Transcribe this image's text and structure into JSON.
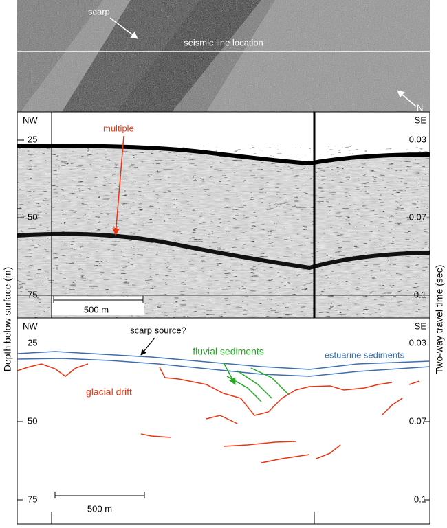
{
  "sonar": {
    "scarp": "scarp",
    "line": "seismic line location",
    "north": "N"
  },
  "profile": {
    "nw": "NW",
    "se": "SE",
    "depth_ticks": [
      "25",
      "50",
      "75"
    ],
    "time_ticks": [
      "0.03",
      "0.07",
      "0.1"
    ],
    "annotation": "multiple",
    "scale": "500 m"
  },
  "interpretation": {
    "nw": "NW",
    "se": "SE",
    "depth_ticks": [
      "25",
      "50",
      "75"
    ],
    "time_ticks": [
      "0.03",
      "0.07",
      "0.1"
    ],
    "scarp_source": "scarp source?",
    "fluvial": "fluvial sediments",
    "estuarine": "estuarine sediments",
    "glacial": "glacial drift",
    "scale": "500 m"
  },
  "axes": {
    "depth": "Depth below surface (m)",
    "time": "Two-way travel time (sec)"
  }
}
